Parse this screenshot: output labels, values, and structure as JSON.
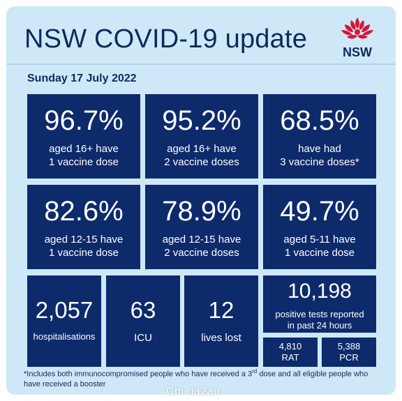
{
  "header": {
    "title": "NSW COVID-19 update",
    "logo_text": "NSW"
  },
  "date": "Sunday 17 July 2022",
  "vaccination": [
    {
      "value": "96.7%",
      "line1": "aged 16+ have",
      "line2": "1 vaccine dose"
    },
    {
      "value": "95.2%",
      "line1": "aged 16+ have",
      "line2": "2 vaccine doses"
    },
    {
      "value": "68.5%",
      "line1": "have had",
      "line2": "3 vaccine doses*"
    },
    {
      "value": "82.6%",
      "line1": "aged 12-15 have",
      "line2": "1 vaccine dose"
    },
    {
      "value": "78.9%",
      "line1": "aged 12-15 have",
      "line2": "2 vaccine doses"
    },
    {
      "value": "49.7%",
      "line1": "aged 5-11 have",
      "line2": "1 vaccine dose"
    }
  ],
  "stats": {
    "hospitalisations": {
      "value": "2,057",
      "label": "hospitalisations"
    },
    "icu": {
      "value": "63",
      "label": "ICU"
    },
    "deaths": {
      "value": "12",
      "label": "lives lost"
    },
    "positive": {
      "value": "10,198",
      "line1": "positive tests reported",
      "line2": "in past 24 hours"
    },
    "rat": {
      "value": "4,810",
      "label": "RAT"
    },
    "pcr": {
      "value": "5,388",
      "label": "PCR"
    }
  },
  "footnote": {
    "part1": "*Includes both immunocompromised people who have received a 3",
    "sup": "rd",
    "part2": " dose and all eligible people who have received a booster"
  },
  "watermark": "Chi na2au",
  "colors": {
    "background": "#cfe8f7",
    "tile": "#0d2a6b",
    "text_dark": "#0d2a5c",
    "logo_red": "#d7153a"
  }
}
